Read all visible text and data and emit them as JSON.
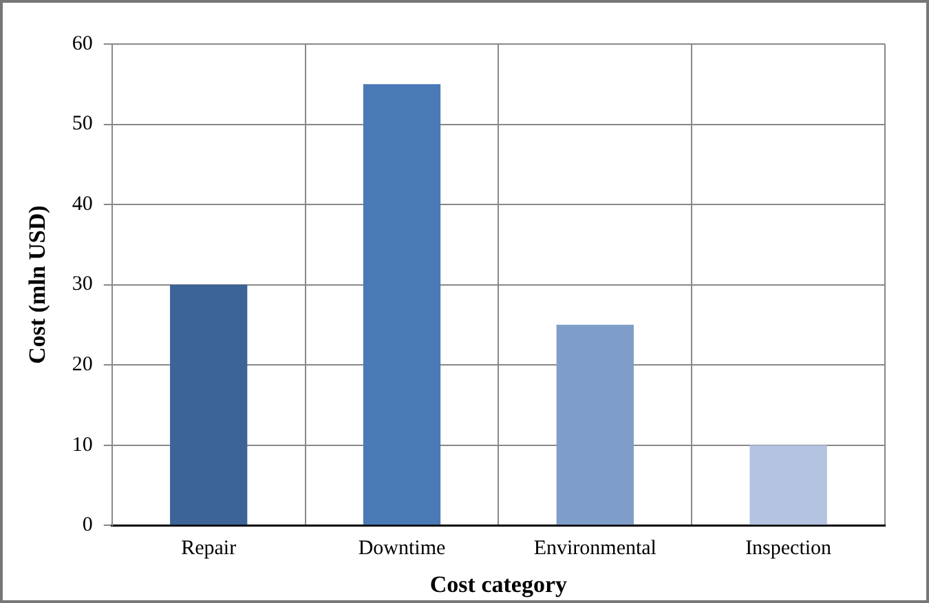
{
  "chart_data": {
    "type": "bar",
    "xlabel": "Cost category",
    "ylabel": "Cost (mln USD)",
    "categories": [
      "Repair",
      "Downtime",
      "Environmental",
      "Inspection"
    ],
    "values": [
      30,
      55,
      25,
      10
    ],
    "colors": [
      "#3d6496",
      "#4a7ab5",
      "#7f9dc9",
      "#b3c3e0"
    ],
    "ylim": [
      0,
      60
    ],
    "yticks": [
      0,
      10,
      20,
      30,
      40,
      50,
      60
    ],
    "grid": true
  }
}
